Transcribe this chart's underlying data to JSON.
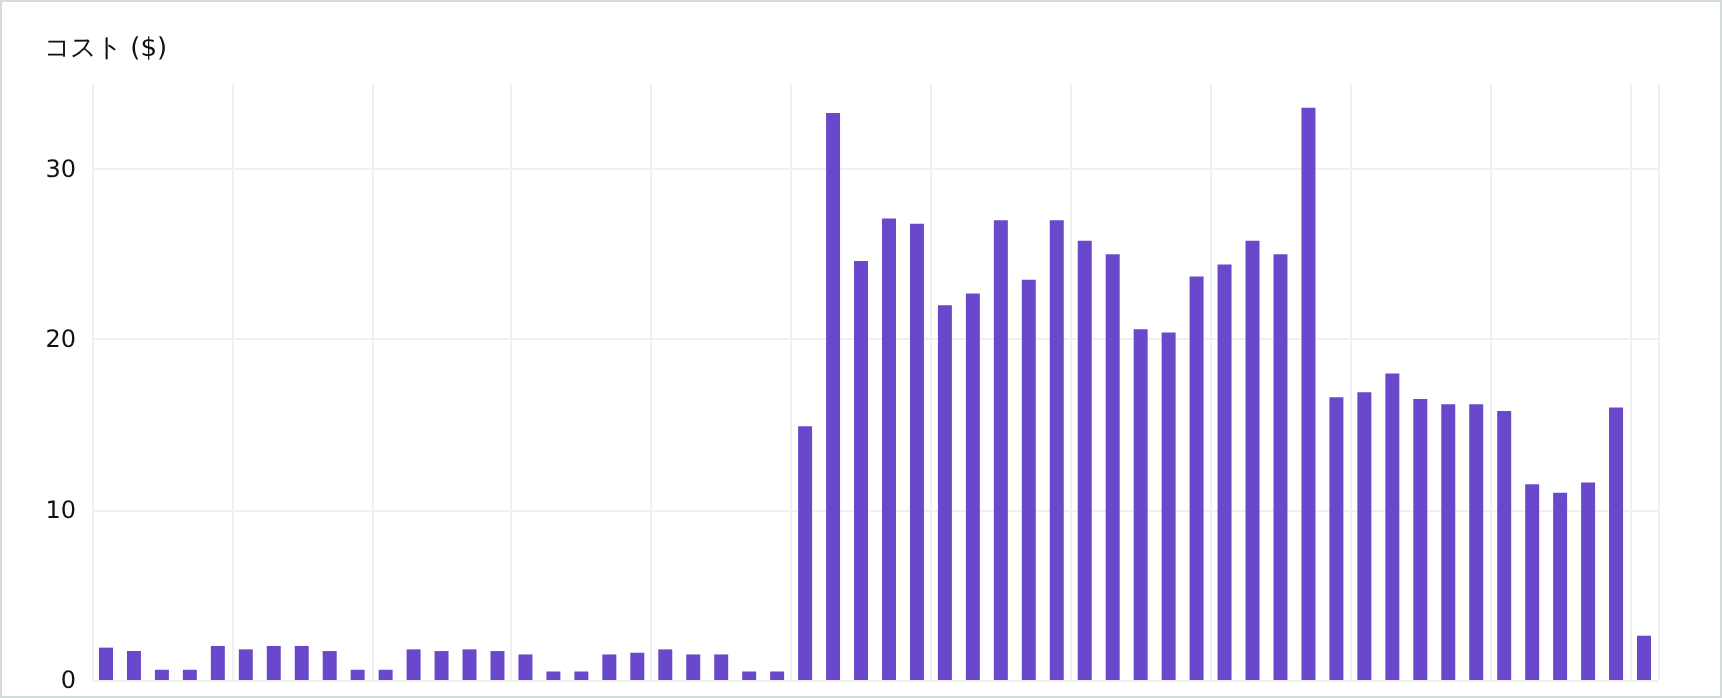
{
  "chart_data": {
    "type": "bar",
    "title": "コスト ($)",
    "categories": [
      null,
      null,
      null,
      null,
      null,
      null,
      null,
      null,
      null,
      null,
      null,
      null,
      null,
      null,
      null,
      null,
      null,
      null,
      null,
      null,
      null,
      null,
      null,
      null,
      null,
      null,
      null,
      null,
      null,
      null,
      null,
      null,
      null,
      null,
      null,
      null,
      null,
      null,
      null,
      null,
      null,
      null,
      null,
      null,
      null,
      null,
      null,
      null,
      null,
      null,
      null,
      null,
      null,
      null,
      null,
      null
    ],
    "values": [
      1.9,
      1.7,
      0.6,
      0.6,
      2.0,
      1.8,
      2.0,
      2.0,
      1.7,
      0.6,
      0.6,
      1.8,
      1.7,
      1.8,
      1.7,
      1.5,
      0.5,
      0.5,
      1.5,
      1.6,
      1.8,
      1.5,
      1.5,
      0.5,
      0.5,
      14.9,
      33.3,
      24.6,
      27.1,
      26.8,
      22.0,
      22.7,
      27.0,
      23.5,
      27.0,
      25.8,
      25.0,
      20.6,
      20.4,
      23.7,
      24.4,
      25.8,
      25.0,
      33.6,
      16.6,
      16.9,
      18.0,
      16.5,
      16.2,
      16.2,
      15.8,
      11.5,
      11.0,
      11.6,
      16.0,
      2.6
    ],
    "color": "#6a48cc",
    "ylim": [
      0,
      35
    ],
    "yticks": [
      0,
      10,
      20,
      30
    ],
    "grid": true,
    "tick_labels": "y"
  }
}
